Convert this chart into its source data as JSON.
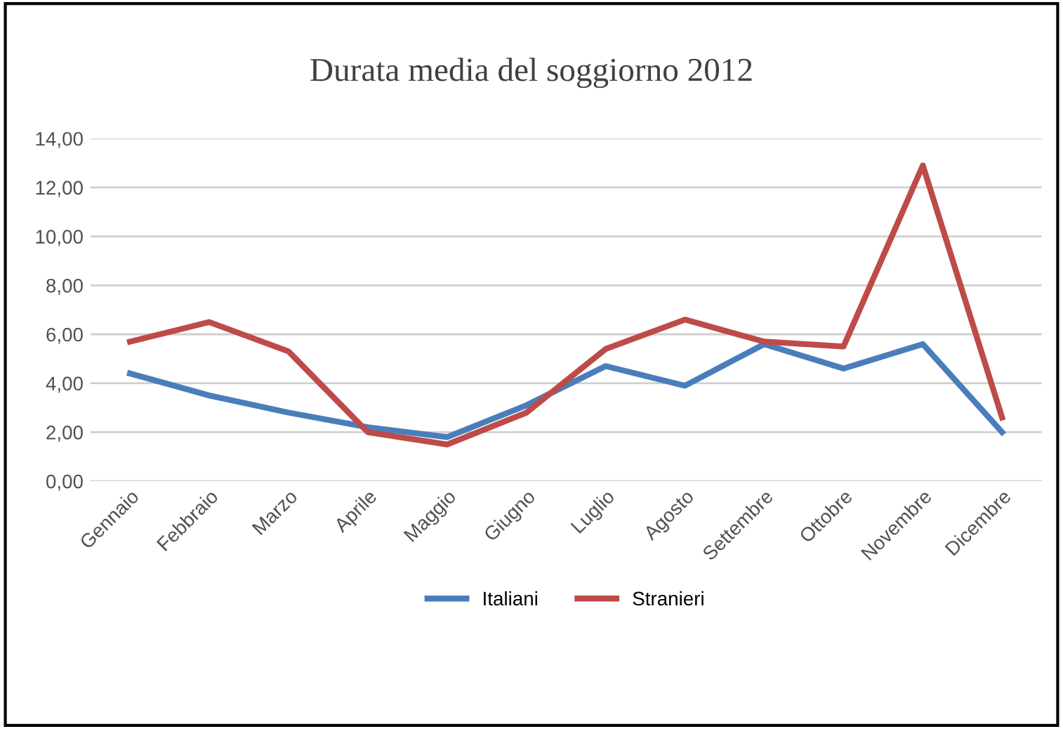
{
  "chart_data": {
    "type": "line",
    "title": "Durata media del soggiorno 2012",
    "categories": [
      "Gennaio",
      "Febbraio",
      "Marzo",
      "Aprile",
      "Maggio",
      "Giugno",
      "Luglio",
      "Agosto",
      "Settembre",
      "Ottobre",
      "Novembre",
      "Dicembre"
    ],
    "series": [
      {
        "name": "Italiani",
        "color": "#4a7ebb",
        "values": [
          4.4,
          3.5,
          2.8,
          2.2,
          1.8,
          3.1,
          4.7,
          3.9,
          5.6,
          4.6,
          5.6,
          2.0
        ]
      },
      {
        "name": "Stranieri",
        "color": "#be4b48",
        "values": [
          5.7,
          6.5,
          5.3,
          2.0,
          1.5,
          2.8,
          5.4,
          6.6,
          5.7,
          5.5,
          12.9,
          2.6
        ]
      }
    ],
    "ylim": [
      0,
      14
    ],
    "yticks": [
      {
        "value": 0,
        "label": "0,00"
      },
      {
        "value": 2,
        "label": "2,00"
      },
      {
        "value": 4,
        "label": "4,00"
      },
      {
        "value": 6,
        "label": "6,00"
      },
      {
        "value": 8,
        "label": "8,00"
      },
      {
        "value": 10,
        "label": "10,00"
      },
      {
        "value": 12,
        "label": "12,00"
      },
      {
        "value": 14,
        "label": "14,00"
      }
    ],
    "grid": "y",
    "legend": "bottom",
    "marker": "none",
    "line_style": "solid"
  }
}
